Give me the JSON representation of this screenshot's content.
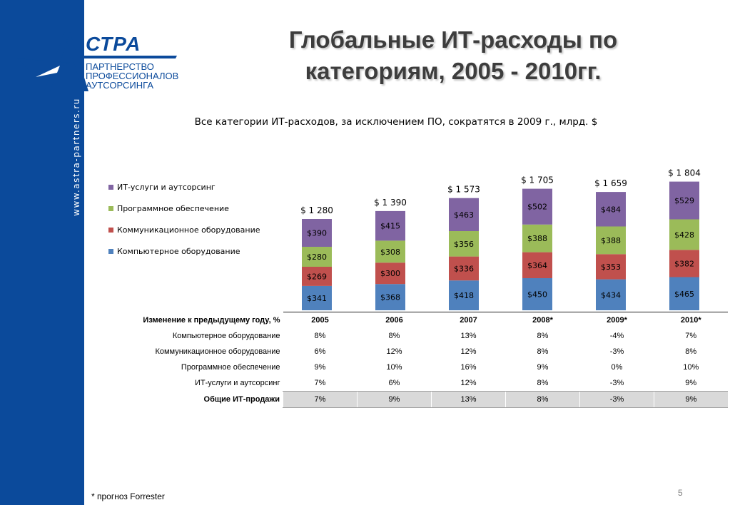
{
  "sidebar": {
    "url": "www.astra-partners.ru"
  },
  "logo": {
    "wordmark": "СТРА",
    "tagline": [
      "ПАРТНЕРСТВО",
      "ПРОФЕССИОНАЛОВ",
      "АУТСОРСИНГА"
    ]
  },
  "title_lines": [
    "Глобальные ИТ-расходы по",
    "категориям, 2005 - 2010гг."
  ],
  "colors": {
    "sidebar": "#0b4a9b",
    "computer": "#4f81bd",
    "comm": "#c0504d",
    "software": "#9bbb59",
    "services": "#8064a2"
  },
  "chart_data": {
    "type": "bar",
    "stacked": true,
    "title": "Все категории ИТ-расходов, за исключением ПО, сократятся в 2009 г., млрд. $",
    "categories": [
      "2005",
      "2006",
      "2007",
      "2008*",
      "2009*",
      "2010*"
    ],
    "series": [
      {
        "name": "Компьютерное оборудование",
        "values": [
          341,
          368,
          418,
          450,
          434,
          465
        ],
        "labels": [
          "$341",
          "$368",
          "$418",
          "$450",
          "$434",
          "$465"
        ]
      },
      {
        "name": "Коммуникационное оборудование",
        "values": [
          269,
          300,
          336,
          364,
          353,
          382
        ],
        "labels": [
          "$269",
          "$300",
          "$336",
          "$364",
          "$353",
          "$382"
        ]
      },
      {
        "name": "Программное обеспечение",
        "values": [
          280,
          308,
          356,
          388,
          388,
          428
        ],
        "labels": [
          "$280",
          "$308",
          "$356",
          "$388",
          "$388",
          "$428"
        ]
      },
      {
        "name": "ИТ-услуги и аутсорсинг",
        "values": [
          390,
          415,
          463,
          502,
          484,
          529
        ],
        "labels": [
          "$390",
          "$415",
          "$463",
          "$502",
          "$484",
          "$529"
        ]
      }
    ],
    "totals": [
      1280,
      1390,
      1573,
      1705,
      1659,
      1804
    ],
    "total_labels": [
      "$ 1 280",
      "$ 1 390",
      "$ 1 573",
      "$ 1 705",
      "$ 1 659",
      "$ 1 804"
    ],
    "legend": {
      "position": "left",
      "items": [
        "ИТ-услуги и аутсорсинг",
        "Программное обеспечение",
        "Коммуникационное оборудование",
        "Компьютерное оборудование"
      ]
    },
    "grid": false
  },
  "table": {
    "header_label": "Изменение к предыдущему году, %",
    "years": [
      "2005",
      "2006",
      "2007",
      "2008*",
      "2009*",
      "2010*"
    ],
    "rows": [
      {
        "label": "Компьютерное оборудование",
        "values": [
          "8%",
          "8%",
          "13%",
          "8%",
          "-4%",
          "7%"
        ]
      },
      {
        "label": "Коммуникационное оборудование",
        "values": [
          "6%",
          "12%",
          "12%",
          "8%",
          "-3%",
          "8%"
        ]
      },
      {
        "label": "Программное обеспечение",
        "values": [
          "9%",
          "10%",
          "16%",
          "9%",
          "0%",
          "10%"
        ]
      },
      {
        "label": "ИТ-услуги и аутсорсинг",
        "values": [
          "7%",
          "6%",
          "12%",
          "8%",
          "-3%",
          "9%"
        ]
      }
    ],
    "total_row": {
      "label": "Общие ИТ-продажи",
      "values": [
        "7%",
        "9%",
        "13%",
        "8%",
        "-3%",
        "9%"
      ]
    }
  },
  "footnote": "* прогноз Forrester",
  "page_number": "5"
}
